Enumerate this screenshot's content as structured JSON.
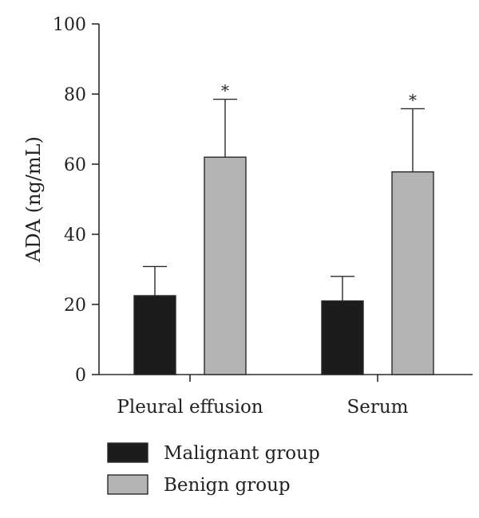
{
  "chart_data": {
    "type": "bar",
    "ylabel": "ADA (ng/mL)",
    "ylim": [
      0,
      100
    ],
    "yticks": [
      0,
      20,
      40,
      60,
      80,
      100
    ],
    "categories": [
      "Pleural effusion",
      "Serum"
    ],
    "series": [
      {
        "name": "Malignant group",
        "color": "#1c1c1c",
        "values": [
          22.5,
          21
        ],
        "errors": [
          8.3,
          7
        ]
      },
      {
        "name": "Benign group",
        "color": "#b4b4b4",
        "values": [
          62,
          57.8
        ],
        "errors": [
          16.5,
          18
        ],
        "significance": [
          "*",
          "*"
        ]
      }
    ],
    "legend_position": "bottom-left",
    "grid": false
  }
}
